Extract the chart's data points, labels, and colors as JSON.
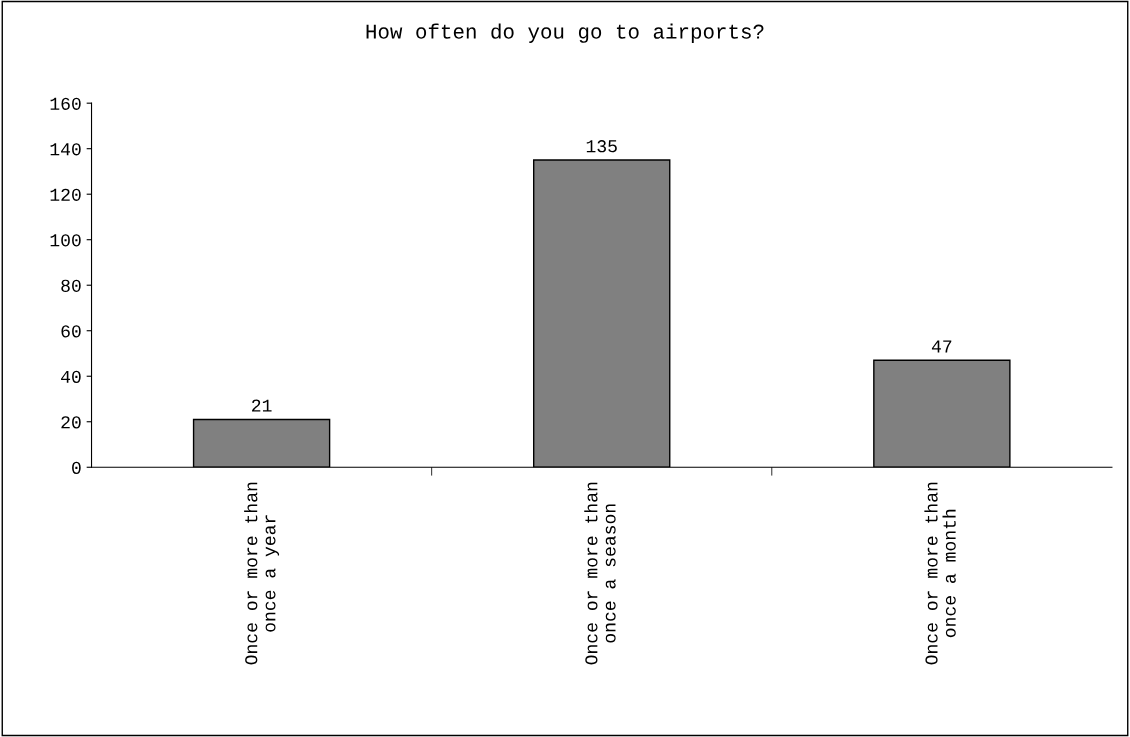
{
  "chart_data": {
    "type": "bar",
    "title": "How often do you go to airports?",
    "categories": [
      "Once or more than\nonce a year",
      "Once or more than\nonce a season",
      "Once or more than\nonce a month"
    ],
    "values": [
      21,
      135,
      47
    ],
    "color": "#808080",
    "ylim": [
      0,
      160
    ],
    "yticks": [
      0,
      20,
      40,
      60,
      80,
      100,
      120,
      140,
      160
    ],
    "grid": false,
    "data_labels": true
  }
}
